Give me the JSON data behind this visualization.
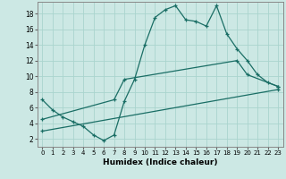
{
  "xlabel": "Humidex (Indice chaleur)",
  "xlim": [
    -0.5,
    23.5
  ],
  "ylim": [
    1,
    19.5
  ],
  "yticks": [
    2,
    4,
    6,
    8,
    10,
    12,
    14,
    16,
    18
  ],
  "xticks": [
    0,
    1,
    2,
    3,
    4,
    5,
    6,
    7,
    8,
    9,
    10,
    11,
    12,
    13,
    14,
    15,
    16,
    17,
    18,
    19,
    20,
    21,
    22,
    23
  ],
  "bg_color": "#cce8e4",
  "line_color": "#1a6e65",
  "grid_color": "#aad4ce",
  "series": [
    {
      "x": [
        0,
        1,
        2,
        3,
        4,
        5,
        6,
        7,
        8,
        9,
        10,
        11,
        12,
        13,
        14,
        15,
        16,
        17,
        18,
        19,
        20,
        21,
        22,
        23
      ],
      "y": [
        7.0,
        5.7,
        4.8,
        4.2,
        3.6,
        2.5,
        1.8,
        2.5,
        6.8,
        9.6,
        14.0,
        17.5,
        18.5,
        19.0,
        17.2,
        17.0,
        16.4,
        19.0,
        15.4,
        13.5,
        12.0,
        10.2,
        9.2,
        8.7
      ],
      "marker": "+"
    },
    {
      "x": [
        0,
        7,
        8,
        19,
        20,
        23
      ],
      "y": [
        4.5,
        7.0,
        9.6,
        12.0,
        10.2,
        8.7
      ],
      "marker": "+"
    },
    {
      "x": [
        0,
        23
      ],
      "y": [
        3.0,
        8.3
      ],
      "marker": "+"
    }
  ]
}
